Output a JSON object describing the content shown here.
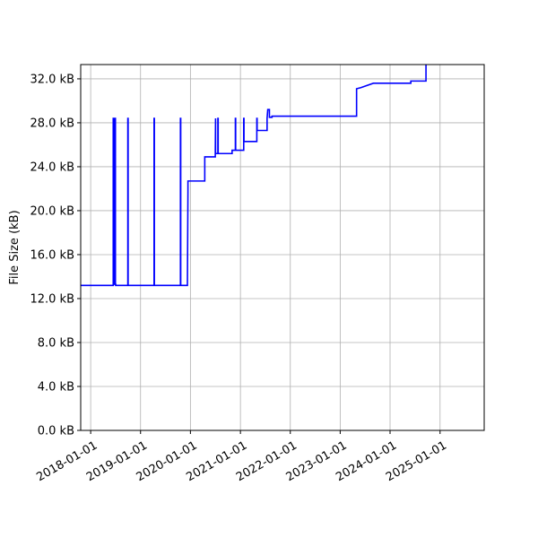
{
  "chart_data": {
    "type": "line",
    "title": "",
    "xlabel": "",
    "ylabel": "File Size (kB)",
    "grid": true,
    "legend": "none",
    "line_color": "#0000ff",
    "xlim": [
      "2017-10-20",
      "2025-11-20"
    ],
    "ylim": [
      0,
      33.3
    ],
    "x_ticks": [
      "2018-01-01",
      "2019-01-01",
      "2020-01-01",
      "2021-01-01",
      "2022-01-01",
      "2023-01-01",
      "2024-01-01",
      "2025-01-01"
    ],
    "y_ticks": [
      0,
      4,
      8,
      12,
      16,
      20,
      24,
      28,
      32
    ],
    "y_tick_labels": [
      "0.0 kB",
      "4.0 kB",
      "8.0 kB",
      "12.0 kB",
      "16.0 kB",
      "20.0 kB",
      "24.0 kB",
      "28.0 kB",
      "32.0 kB"
    ],
    "series": [
      {
        "x": [
          "2017-10-20",
          "2018-06-15",
          "2018-06-15",
          "2018-06-17",
          "2018-06-17",
          "2018-06-19",
          "2018-06-19",
          "2018-06-21",
          "2018-06-21",
          "2018-06-24",
          "2018-06-24",
          "2018-06-26",
          "2018-06-26",
          "2018-06-28",
          "2018-06-28",
          "2018-07-01",
          "2018-07-01",
          "2018-07-03",
          "2018-07-03",
          "2018-09-30",
          "2018-09-30",
          "2018-10-02",
          "2018-10-02",
          "2019-04-10",
          "2019-04-10",
          "2019-04-12",
          "2019-04-12",
          "2019-10-20",
          "2019-10-20",
          "2019-10-22",
          "2019-10-22",
          "2019-12-10",
          "2019-12-14",
          "2019-12-14",
          "2020-04-15",
          "2020-04-15",
          "2020-07-01",
          "2020-07-01",
          "2020-07-03",
          "2020-07-03",
          "2020-07-20",
          "2020-07-20",
          "2020-07-22",
          "2020-07-22",
          "2020-11-01",
          "2020-11-01",
          "2020-11-25",
          "2020-11-25",
          "2020-11-27",
          "2020-11-27",
          "2021-01-25",
          "2021-01-25",
          "2021-01-27",
          "2021-01-27",
          "2021-05-01",
          "2021-05-01",
          "2021-05-03",
          "2021-05-03",
          "2021-07-15",
          "2021-07-15",
          "2021-07-20",
          "2021-08-01",
          "2021-08-01",
          "2021-08-20",
          "2021-08-20",
          "2021-11-10",
          "2021-11-10",
          "2023-05-01",
          "2023-05-01",
          "2023-06-01",
          "2023-09-01",
          "2024-06-01",
          "2024-06-01",
          "2024-09-20",
          "2024-09-20"
        ],
        "y": [
          13.2,
          13.2,
          28.4,
          28.4,
          13.3,
          13.3,
          28.4,
          28.4,
          13.3,
          13.3,
          28.4,
          28.4,
          13.3,
          13.3,
          28.4,
          28.4,
          13.3,
          13.3,
          13.2,
          13.2,
          28.4,
          28.4,
          13.2,
          13.2,
          28.4,
          28.4,
          13.2,
          13.2,
          28.4,
          28.4,
          13.2,
          13.2,
          21.8,
          22.7,
          22.7,
          24.9,
          24.9,
          25.1,
          28.4,
          25.2,
          25.2,
          28.4,
          28.4,
          25.2,
          25.2,
          25.5,
          25.5,
          28.4,
          28.4,
          25.5,
          25.5,
          28.4,
          28.4,
          26.3,
          26.3,
          28.4,
          28.4,
          27.3,
          27.3,
          28.4,
          29.2,
          29.2,
          28.5,
          28.5,
          28.6,
          28.6,
          28.6,
          28.6,
          31.1,
          31.2,
          31.6,
          31.6,
          31.8,
          31.8,
          33.3
        ]
      }
    ]
  }
}
